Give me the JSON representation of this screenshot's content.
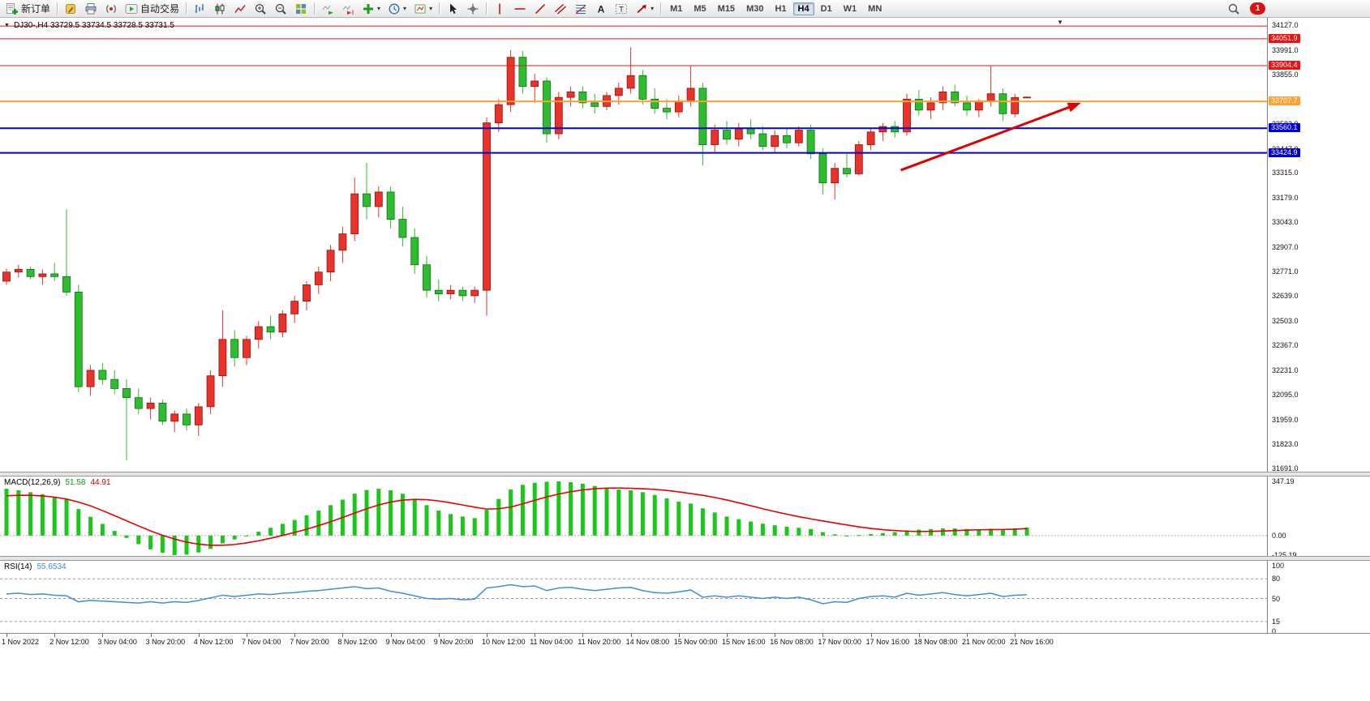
{
  "toolbar": {
    "new_order": "新订单",
    "autotrading": "自动交易",
    "timeframes": [
      "M1",
      "M5",
      "M15",
      "M30",
      "H1",
      "H4",
      "D1",
      "W1",
      "MN"
    ],
    "active_timeframe": "H4",
    "notification_count": "1",
    "icon_names": [
      "new-order-icon",
      "metaeditor-icon",
      "print-icon",
      "broadcast-icon",
      "autotrading-icon",
      "bars-chart-icon",
      "candlestick-chart-icon",
      "line-chart-icon",
      "zoom-in-icon",
      "zoom-out-icon",
      "tile-windows-icon",
      "auto-scroll-icon",
      "chart-shift-icon",
      "indicators-icon",
      "periods-icon",
      "templates-icon",
      "cursor-icon",
      "crosshair-icon",
      "vertical-line-icon",
      "horizontal-line-icon",
      "trendline-icon",
      "equidistant-channel-icon",
      "fibonacci-icon",
      "text-icon",
      "text-label-icon",
      "arrows-icon",
      "search-icon",
      "notification-badge"
    ]
  },
  "chart": {
    "symbol_header": "DJ30-,H4 33729.5 33734.5 33728.5 33731.5",
    "price_axis_labels": [
      "34127.0",
      "33991.0",
      "33855.0",
      "33719.0",
      "33583.0",
      "33447.0",
      "33315.0",
      "33179.0",
      "33043.0",
      "32907.0",
      "32771.0",
      "32639.0",
      "32503.0",
      "32367.0",
      "32231.0",
      "32095.0",
      "31959.0",
      "31823.0",
      "31691.0"
    ],
    "time_axis_labels": [
      "1 Nov 2022",
      "2 Nov 12:00",
      "3 Nov 04:00",
      "3 Nov 20:00",
      "4 Nov 12:00",
      "7 Nov 04:00",
      "7 Nov 20:00",
      "8 Nov 12:00",
      "9 Nov 04:00",
      "9 Nov 20:00",
      "10 Nov 12:00",
      "11 Nov 04:00",
      "11 Nov 20:00",
      "14 Nov 08:00",
      "15 Nov 00:00",
      "15 Nov 16:00",
      "16 Nov 08:00",
      "17 Nov 00:00",
      "17 Nov 16:00",
      "18 Nov 08:00",
      "21 Nov 00:00",
      "21 Nov 16:00"
    ]
  },
  "indicators": {
    "macd": {
      "header": "MACD(12,26,9)",
      "value_main": "51.58",
      "value_signal": "44.91",
      "axis_labels": [
        "347.19",
        "0.00",
        "-125.19"
      ]
    },
    "rsi": {
      "header": "RSI(14)",
      "value": "55.6534",
      "axis_labels": [
        "100",
        "80",
        "50",
        "15",
        "0"
      ]
    }
  },
  "chart_data": {
    "type": "candlestick",
    "symbol": "DJ30-",
    "timeframe": "H4",
    "current_ohlc": {
      "open": 33729.5,
      "high": 33734.5,
      "low": 33728.5,
      "close": 33731.5
    },
    "y_axis_range": [
      31691.0,
      34127.0
    ],
    "up_color": "#e8322a",
    "down_color": "#2ebd2e",
    "note_color_convention": "red = bullish, green = bearish (Chinese convention)",
    "candles_ohlc": [
      [
        32720,
        32790,
        32700,
        32770
      ],
      [
        32770,
        32810,
        32740,
        32785
      ],
      [
        32785,
        32800,
        32730,
        32745
      ],
      [
        32745,
        32785,
        32700,
        32760
      ],
      [
        32760,
        32820,
        32720,
        32745
      ],
      [
        32745,
        33115,
        32640,
        32660
      ],
      [
        32660,
        32700,
        32110,
        32140
      ],
      [
        32140,
        32260,
        32090,
        32230
      ],
      [
        32230,
        32270,
        32150,
        32180
      ],
      [
        32180,
        32230,
        32100,
        32130
      ],
      [
        32130,
        32180,
        31735,
        32080
      ],
      [
        32080,
        32130,
        31990,
        32020
      ],
      [
        32020,
        32080,
        31960,
        32050
      ],
      [
        32050,
        32070,
        31930,
        31950
      ],
      [
        31950,
        32010,
        31890,
        31990
      ],
      [
        31990,
        32020,
        31900,
        31930
      ],
      [
        31930,
        32050,
        31870,
        32030
      ],
      [
        32030,
        32230,
        31990,
        32200
      ],
      [
        32200,
        32560,
        32140,
        32400
      ],
      [
        32400,
        32450,
        32250,
        32300
      ],
      [
        32300,
        32420,
        32260,
        32400
      ],
      [
        32400,
        32500,
        32350,
        32470
      ],
      [
        32470,
        32530,
        32400,
        32440
      ],
      [
        32440,
        32560,
        32410,
        32540
      ],
      [
        32540,
        32640,
        32490,
        32610
      ],
      [
        32610,
        32720,
        32560,
        32700
      ],
      [
        32700,
        32800,
        32650,
        32770
      ],
      [
        32770,
        32920,
        32720,
        32890
      ],
      [
        32890,
        33020,
        32820,
        32980
      ],
      [
        32980,
        33290,
        32940,
        33200
      ],
      [
        33200,
        33370,
        33060,
        33130
      ],
      [
        33130,
        33240,
        33070,
        33210
      ],
      [
        33210,
        33240,
        33010,
        33060
      ],
      [
        33060,
        33130,
        32910,
        32960
      ],
      [
        32960,
        33010,
        32760,
        32810
      ],
      [
        32810,
        32860,
        32630,
        32670
      ],
      [
        32670,
        32730,
        32610,
        32650
      ],
      [
        32650,
        32700,
        32620,
        32670
      ],
      [
        32670,
        32690,
        32610,
        32640
      ],
      [
        32640,
        32690,
        32600,
        32670
      ],
      [
        32670,
        33620,
        32530,
        33590
      ],
      [
        33590,
        33720,
        33540,
        33690
      ],
      [
        33690,
        33990,
        33650,
        33950
      ],
      [
        33950,
        33985,
        33750,
        33790
      ],
      [
        33790,
        33860,
        33700,
        33820
      ],
      [
        33820,
        33840,
        33480,
        33530
      ],
      [
        33530,
        33760,
        33500,
        33730
      ],
      [
        33730,
        33790,
        33680,
        33760
      ],
      [
        33760,
        33790,
        33670,
        33700
      ],
      [
        33700,
        33750,
        33640,
        33680
      ],
      [
        33680,
        33760,
        33660,
        33740
      ],
      [
        33740,
        33810,
        33690,
        33780
      ],
      [
        33780,
        34005,
        33750,
        33850
      ],
      [
        33850,
        33880,
        33690,
        33720
      ],
      [
        33720,
        33780,
        33640,
        33670
      ],
      [
        33670,
        33720,
        33610,
        33650
      ],
      [
        33650,
        33740,
        33620,
        33710
      ],
      [
        33710,
        33905,
        33680,
        33780
      ],
      [
        33780,
        33810,
        33355,
        33470
      ],
      [
        33470,
        33580,
        33430,
        33550
      ],
      [
        33550,
        33600,
        33470,
        33500
      ],
      [
        33500,
        33590,
        33460,
        33560
      ],
      [
        33560,
        33610,
        33500,
        33530
      ],
      [
        33530,
        33570,
        33440,
        33460
      ],
      [
        33460,
        33550,
        33430,
        33520
      ],
      [
        33520,
        33560,
        33450,
        33480
      ],
      [
        33480,
        33570,
        33460,
        33550
      ],
      [
        33550,
        33580,
        33390,
        33420
      ],
      [
        33420,
        33450,
        33195,
        33260
      ],
      [
        33260,
        33370,
        33170,
        33340
      ],
      [
        33340,
        33420,
        33290,
        33310
      ],
      [
        33310,
        33490,
        33300,
        33470
      ],
      [
        33470,
        33560,
        33440,
        33540
      ],
      [
        33540,
        33590,
        33490,
        33570
      ],
      [
        33570,
        33600,
        33510,
        33540
      ],
      [
        33540,
        33750,
        33520,
        33720
      ],
      [
        33720,
        33770,
        33630,
        33660
      ],
      [
        33660,
        33730,
        33610,
        33700
      ],
      [
        33700,
        33790,
        33660,
        33760
      ],
      [
        33760,
        33800,
        33680,
        33700
      ],
      [
        33700,
        33740,
        33630,
        33660
      ],
      [
        33660,
        33720,
        33620,
        33710
      ],
      [
        33710,
        33905,
        33680,
        33750
      ],
      [
        33750,
        33780,
        33600,
        33640
      ],
      [
        33640,
        33750,
        33620,
        33729.5
      ],
      [
        33729.5,
        33734.5,
        33728.5,
        33731.5
      ]
    ],
    "time_labels_every_n_candles": 4,
    "hlines": [
      {
        "price": 34122.0,
        "color": "#ee1111",
        "width": 1,
        "label": ""
      },
      {
        "price": 34051.9,
        "color": "#ee1111",
        "width": 1,
        "label": "34051.9"
      },
      {
        "price": 33904.4,
        "color": "#ee1111",
        "width": 1,
        "label": "33904.4"
      },
      {
        "price": 33707.7,
        "color": "#ffa133",
        "width": 2,
        "label": "33707.7"
      },
      {
        "price": 33560.1,
        "color": "#0000e0",
        "width": 2,
        "label": "33560.1"
      },
      {
        "price": 33424.9,
        "color": "#0000e0",
        "width": 2,
        "label": "33424.9"
      }
    ],
    "trend_arrow": {
      "from": {
        "index": 74.5,
        "price": 33330
      },
      "to": {
        "index": 89.5,
        "price": 33700
      },
      "color": "#e00000"
    },
    "macd": {
      "histogram_color": "#19c819",
      "signal_color": "#e80000",
      "range": [
        -125.19,
        347.19
      ],
      "histogram": [
        300,
        290,
        278,
        265,
        250,
        232,
        170,
        120,
        75,
        30,
        -15,
        -55,
        -88,
        -110,
        -125.19,
        -122,
        -108,
        -85,
        -50,
        -25,
        0,
        25,
        50,
        75,
        100,
        130,
        160,
        195,
        230,
        268,
        292,
        300,
        290,
        268,
        235,
        195,
        160,
        138,
        122,
        112,
        165,
        235,
        295,
        325,
        338,
        345,
        347.19,
        342,
        332,
        318,
        305,
        295,
        290,
        278,
        260,
        238,
        218,
        205,
        175,
        148,
        122,
        105,
        90,
        76,
        66,
        57,
        50,
        42,
        22,
        8,
        0,
        4,
        10,
        16,
        22,
        34,
        38,
        42,
        46,
        46,
        42,
        40,
        44,
        40,
        46,
        51.58
      ],
      "signal": [
        255,
        258,
        258,
        254,
        246,
        234,
        215,
        190,
        160,
        128,
        95,
        62,
        30,
        2,
        -22,
        -42,
        -55,
        -62,
        -62,
        -57,
        -47,
        -33,
        -17,
        1,
        20,
        41,
        64,
        89,
        116,
        144,
        172,
        196,
        215,
        227,
        232,
        230,
        222,
        210,
        196,
        182,
        170,
        172,
        183,
        203,
        226,
        248,
        266,
        281,
        292,
        300,
        304,
        305,
        303,
        300,
        296,
        289,
        280,
        269,
        258,
        244,
        228,
        210,
        191,
        172,
        154,
        137,
        121,
        107,
        94,
        81,
        68,
        56,
        46,
        38,
        32,
        28,
        26,
        27,
        29,
        32,
        35,
        37,
        38,
        39,
        41,
        44.91
      ]
    },
    "rsi": {
      "color": "#3d8fd6",
      "range": [
        0,
        100
      ],
      "levels": [
        80,
        50,
        15
      ],
      "values": [
        57,
        58,
        56,
        57,
        55,
        54,
        45,
        47,
        46,
        45,
        44,
        43,
        45,
        43,
        45,
        44,
        47,
        51,
        55,
        53,
        55,
        57,
        56,
        58,
        59,
        61,
        62,
        64,
        66,
        68,
        65,
        66,
        61,
        58,
        54,
        50,
        49,
        50,
        48,
        49,
        66,
        68,
        71,
        68,
        69,
        62,
        66,
        67,
        64,
        62,
        64,
        66,
        67,
        62,
        59,
        58,
        60,
        63,
        52,
        54,
        52,
        54,
        52,
        50,
        52,
        50,
        52,
        48,
        42,
        45,
        44,
        50,
        53,
        54,
        52,
        58,
        55,
        57,
        59,
        56,
        54,
        56,
        58,
        53,
        55,
        55.65
      ]
    }
  }
}
